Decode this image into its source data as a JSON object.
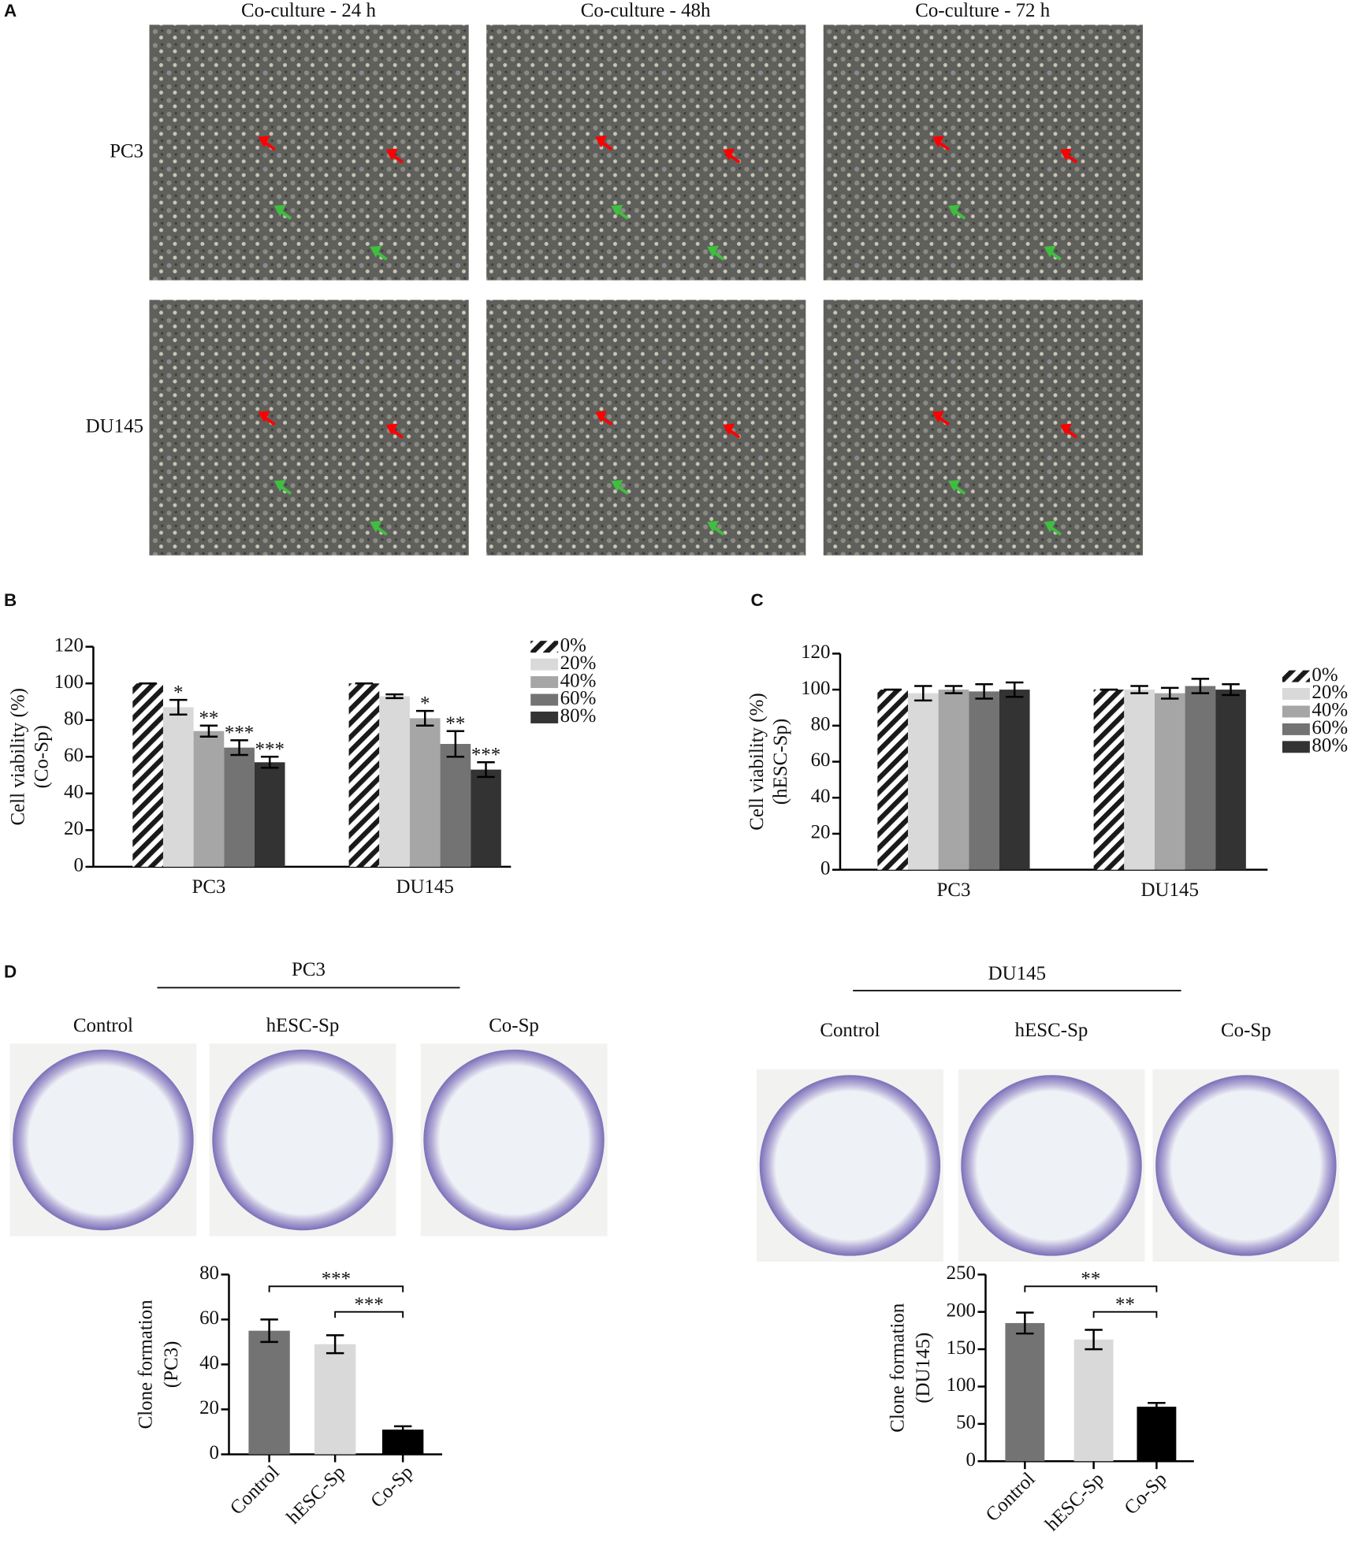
{
  "panel_labels": [
    "A",
    "B",
    "C",
    "D"
  ],
  "panel_a": {
    "columns": [
      "Co-culture - 24 h",
      "Co-culture - 48h",
      "Co-culture - 72 h"
    ],
    "rows": [
      "PC3",
      "DU145"
    ]
  },
  "panel_d_photos": [
    {
      "title": "PC3",
      "labels": [
        "Control",
        "hESC-Sp",
        "Co-Sp"
      ]
    },
    {
      "title": "DU145",
      "labels": [
        "Control",
        "hESC-Sp",
        "Co-Sp"
      ]
    }
  ],
  "chart_data": [
    {
      "type": "bar",
      "y_label": [
        "Cell viability (%)",
        "(Co-Sp)"
      ],
      "categories": [
        "PC3",
        "DU145"
      ],
      "ylim": [
        0,
        120
      ],
      "yticks": [
        0,
        20,
        40,
        60,
        80,
        100,
        120
      ],
      "series": [
        {
          "name": "0%",
          "color": "#1a1a1a",
          "pattern": "hatch",
          "values": [
            100,
            100
          ],
          "errors": [
            0,
            0
          ],
          "significance": [
            null,
            null
          ]
        },
        {
          "name": "20%",
          "color": "#d9d9d9",
          "values": [
            87,
            93
          ],
          "errors": [
            4,
            1
          ],
          "significance": [
            "*",
            null
          ]
        },
        {
          "name": "40%",
          "color": "#a6a6a6",
          "values": [
            74,
            81
          ],
          "errors": [
            3,
            4
          ],
          "significance": [
            "**",
            "*"
          ]
        },
        {
          "name": "60%",
          "color": "#737373",
          "values": [
            65,
            67
          ],
          "errors": [
            4,
            7
          ],
          "significance": [
            "***",
            "**"
          ]
        },
        {
          "name": "80%",
          "color": "#333333",
          "values": [
            57,
            53
          ],
          "errors": [
            3,
            4
          ],
          "significance": [
            "***",
            "***"
          ]
        }
      ]
    },
    {
      "type": "bar",
      "y_label": [
        "Cell viability (%)",
        "(hESC-Sp)"
      ],
      "categories": [
        "PC3",
        "DU145"
      ],
      "ylim": [
        0,
        120
      ],
      "yticks": [
        0,
        20,
        40,
        60,
        80,
        100,
        120
      ],
      "series": [
        {
          "name": "0%",
          "color": "#1a1a1a",
          "pattern": "hatch",
          "values": [
            100,
            100
          ],
          "errors": [
            0,
            0
          ]
        },
        {
          "name": "20%",
          "color": "#d9d9d9",
          "values": [
            98,
            100
          ],
          "errors": [
            4,
            2
          ]
        },
        {
          "name": "40%",
          "color": "#a6a6a6",
          "values": [
            100,
            98
          ],
          "errors": [
            2,
            3
          ]
        },
        {
          "name": "60%",
          "color": "#737373",
          "values": [
            99,
            102
          ],
          "errors": [
            4,
            4
          ]
        },
        {
          "name": "80%",
          "color": "#333333",
          "values": [
            100,
            100
          ],
          "errors": [
            4,
            3
          ]
        }
      ]
    },
    {
      "type": "bar",
      "y_label": [
        "Clone formation",
        "(PC3)"
      ],
      "categories": [
        "Control",
        "hESC-Sp",
        "Co-Sp"
      ],
      "values": [
        55,
        49,
        11
      ],
      "errors": [
        5,
        4,
        1.5
      ],
      "colors": [
        "#737373",
        "#d9d9d9",
        "#000000"
      ],
      "ylim": [
        0,
        80
      ],
      "yticks": [
        0,
        20,
        40,
        60,
        80
      ],
      "brackets": [
        {
          "from": 0,
          "to": 2,
          "label": "***"
        },
        {
          "from": 1,
          "to": 2,
          "label": "***"
        }
      ]
    },
    {
      "type": "bar",
      "y_label": [
        "Clone formation",
        "(DU145)"
      ],
      "categories": [
        "Control",
        "hESC-Sp",
        "Co-Sp"
      ],
      "values": [
        185,
        163,
        73
      ],
      "errors": [
        14,
        13,
        5
      ],
      "colors": [
        "#737373",
        "#d9d9d9",
        "#000000"
      ],
      "ylim": [
        0,
        250
      ],
      "yticks": [
        0,
        50,
        100,
        150,
        200,
        250
      ],
      "brackets": [
        {
          "from": 0,
          "to": 2,
          "label": "**"
        },
        {
          "from": 1,
          "to": 2,
          "label": "**"
        }
      ]
    }
  ]
}
